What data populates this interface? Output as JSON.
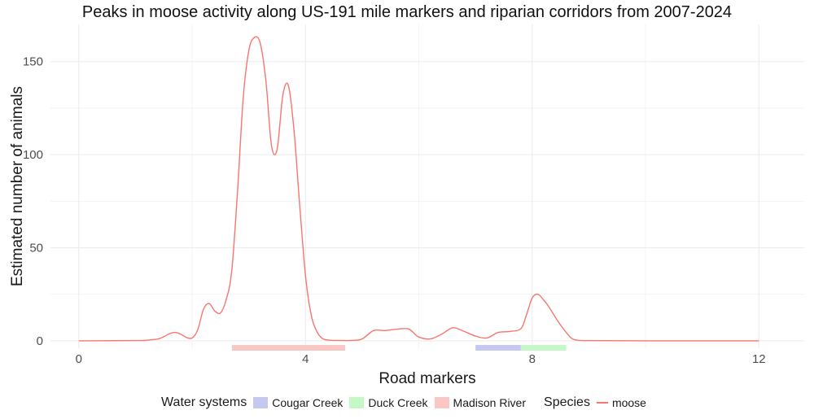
{
  "chart_data": {
    "type": "line",
    "title": "Peaks in moose activity along US-191 mile markers and riparian corridors from 2007-2024",
    "xlabel": "Road markers",
    "ylabel": "Estimated number of animals",
    "xlim": [
      -0.5,
      12.8
    ],
    "ylim": [
      -4,
      170
    ],
    "xticks": [
      0,
      4,
      8,
      12
    ],
    "yticks": [
      0,
      50,
      100,
      150
    ],
    "grid": true,
    "legend_position": "bottom",
    "series": [
      {
        "name": "moose",
        "color": "#f8766d",
        "x": [
          0,
          1.0,
          1.2,
          1.4,
          1.5,
          1.6,
          1.7,
          1.8,
          1.9,
          2.0,
          2.1,
          2.2,
          2.3,
          2.4,
          2.5,
          2.6,
          2.7,
          2.8,
          2.9,
          3.0,
          3.1,
          3.2,
          3.3,
          3.4,
          3.5,
          3.6,
          3.7,
          3.8,
          3.9,
          4.0,
          4.1,
          4.2,
          4.3,
          4.4,
          4.5,
          4.6,
          4.8,
          5.0,
          5.2,
          5.4,
          5.6,
          5.8,
          5.9,
          6.0,
          6.2,
          6.4,
          6.6,
          6.8,
          7.0,
          7.2,
          7.4,
          7.6,
          7.8,
          7.9,
          8.0,
          8.1,
          8.2,
          8.3,
          8.4,
          8.5,
          8.6,
          8.7,
          8.8,
          9.0,
          10.0,
          11.0,
          12.0
        ],
        "y": [
          0,
          0.1,
          0.3,
          1.0,
          2.2,
          3.8,
          4.5,
          3.5,
          1.8,
          1.5,
          6.0,
          17,
          20,
          16,
          15,
          22,
          38,
          80,
          130,
          156,
          163,
          160,
          140,
          105,
          103,
          132,
          137,
          112,
          72,
          35,
          14,
          5,
          1.2,
          0.4,
          0.2,
          0.2,
          0.2,
          1.0,
          5.5,
          5.5,
          6.2,
          6.5,
          4.5,
          2.0,
          1.0,
          3.5,
          7.0,
          5.0,
          2.5,
          1.5,
          4.5,
          5.0,
          6.5,
          14,
          23,
          25,
          22,
          18,
          13,
          8.5,
          4.5,
          1.2,
          0.3,
          0.1,
          0,
          0,
          0
        ]
      }
    ],
    "bands": [
      {
        "name": "Cougar Creek",
        "color": "#c7c8f2",
        "xmin": 7.0,
        "xmax": 7.8
      },
      {
        "name": "Duck Creek",
        "color": "#c6f7c6",
        "xmin": 7.8,
        "xmax": 8.6
      },
      {
        "name": "Madison River",
        "color": "#f9c8c5",
        "xmin": 2.7,
        "xmax": 4.7
      }
    ]
  },
  "legend": {
    "water_title": "Water systems",
    "water_items": [
      {
        "label": "Cougar Creek",
        "color": "#c7c8f2"
      },
      {
        "label": "Duck Creek",
        "color": "#c6f7c6"
      },
      {
        "label": "Madison River",
        "color": "#f9c8c5"
      }
    ],
    "species_title": "Species",
    "species_items": [
      {
        "label": "moose",
        "color": "#f8766d"
      }
    ]
  }
}
